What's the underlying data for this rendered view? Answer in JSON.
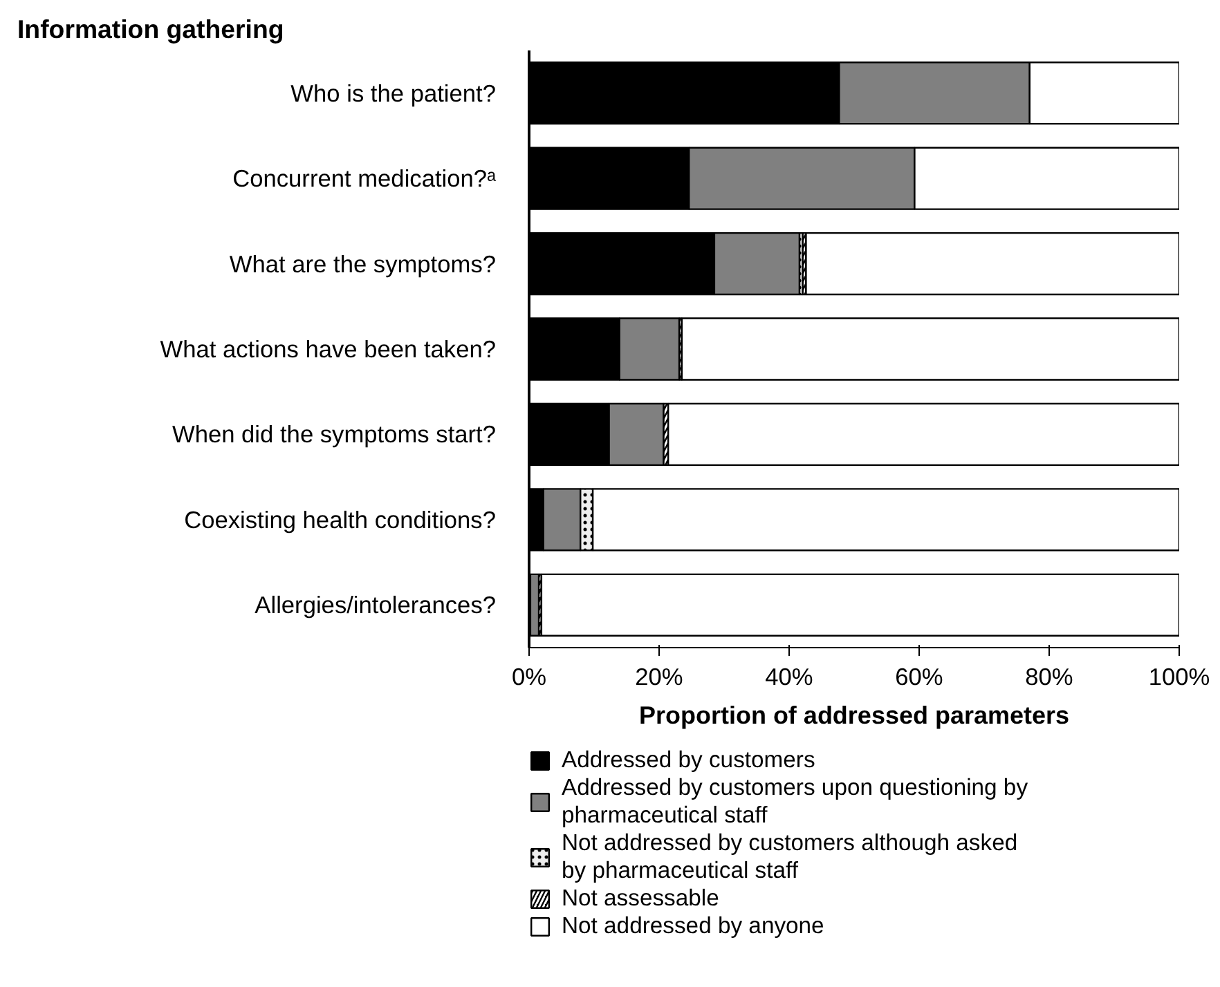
{
  "chart_data": {
    "type": "bar",
    "orientation": "horizontal",
    "stacked": true,
    "title": "Information gathering",
    "categories": [
      "Who is the patient?",
      "Concurrent medication?ᵃ",
      "What are the symptoms?",
      "What actions have been taken?",
      "When did the symptoms start?",
      "Coexisting health conditions?",
      "Allergies/intolerances?"
    ],
    "series": [
      {
        "name": "Addressed by customers",
        "color": "#000000",
        "values": [
          47.7,
          24.6,
          28.5,
          13.9,
          12.3,
          2.2,
          0.2
        ]
      },
      {
        "name": "Addressed by customers upon questioning by pharmaceutical staff",
        "color": "#808080",
        "values": [
          29.3,
          34.7,
          13.1,
          9.2,
          8.4,
          5.7,
          1.3
        ]
      },
      {
        "name": "Not addressed by customers although asked by pharmaceutical staff",
        "color": "#eeeeee",
        "values": [
          0,
          0,
          0.5,
          0,
          0,
          1.9,
          0
        ]
      },
      {
        "name": "Not assessable",
        "color": "#000000",
        "values": [
          0,
          0,
          0.5,
          0.4,
          0.7,
          0,
          0.4
        ]
      },
      {
        "name": "Not addressed by anyone",
        "color": "#ffffff",
        "values": [
          23.0,
          40.7,
          57.4,
          76.5,
          78.6,
          90.2,
          98.1
        ]
      }
    ],
    "xlim": [
      0,
      100
    ],
    "xticks": [
      {
        "value": 0,
        "label": "0%"
      },
      {
        "value": 20,
        "label": "20%"
      },
      {
        "value": 40,
        "label": "40%"
      },
      {
        "value": 60,
        "label": "60%"
      },
      {
        "value": 80,
        "label": "80%"
      },
      {
        "value": 100,
        "label": "100%"
      }
    ],
    "xlabel": "Proportion of addressed parameters",
    "legend": "bottom",
    "grid": false
  }
}
